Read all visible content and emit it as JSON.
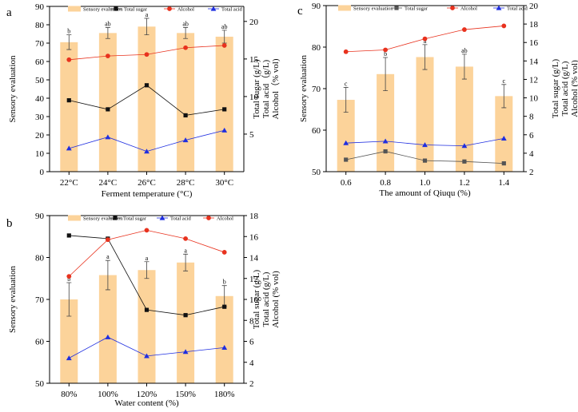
{
  "colors": {
    "bar": "#fcd39a",
    "total_sugar": "#111111",
    "alcohol": "#e8321e",
    "total_acid": "#1f2ee0",
    "sugar_c": "#555555"
  },
  "chart_data": [
    {
      "id": "a",
      "panel_label": "a",
      "type": "bar",
      "categories": [
        "22°C",
        "24°C",
        "26°C",
        "28°C",
        "30°C"
      ],
      "xlabel": "Ferment temperature (°C)",
      "ylabel": "Sensory evaluation",
      "ylim": [
        0,
        90
      ],
      "yticks": [
        0,
        10,
        20,
        30,
        40,
        50,
        60,
        70,
        80,
        90
      ],
      "y2label_lines": [
        "Total sugar (g/L)",
        "Total acid（g/L)",
        "Alcohol（% vol)"
      ],
      "y2lim": [
        0,
        22
      ],
      "y2ticks": [
        5,
        10,
        15,
        20
      ],
      "legend": [
        "Sensory evaluation",
        "Total sugar",
        "Alcohol",
        "Total acid"
      ],
      "bars": {
        "values": [
          70.5,
          75.5,
          79,
          75.5,
          73.5
        ],
        "errors": [
          4,
          3,
          4.5,
          3,
          3.5
        ],
        "labels": [
          "b",
          "ab",
          "a",
          "ab",
          "ab"
        ]
      },
      "series": [
        {
          "key": "total_sugar",
          "marker": "square",
          "values": [
            9.5,
            8.3,
            11.5,
            7.5,
            8.3
          ]
        },
        {
          "key": "alcohol",
          "marker": "circle",
          "values": [
            14.9,
            15.4,
            15.6,
            16.5,
            16.8
          ]
        },
        {
          "key": "total_acid",
          "marker": "triangle",
          "values": [
            3.1,
            4.6,
            2.7,
            4.2,
            5.5
          ]
        }
      ]
    },
    {
      "id": "b",
      "panel_label": "b",
      "type": "bar",
      "categories": [
        "80%",
        "100%",
        "120%",
        "150%",
        "180%"
      ],
      "xlabel": "Water content (%)",
      "ylabel": "Sensory evaluation",
      "ylim": [
        50,
        90
      ],
      "yticks": [
        50,
        60,
        70,
        80,
        90
      ],
      "y2label_lines": [
        "Total sugar (g/L)",
        "Total acid (g/L)",
        "Alcohol (% vol)"
      ],
      "y2lim": [
        2,
        18
      ],
      "y2ticks": [
        2,
        4,
        6,
        8,
        10,
        12,
        14,
        16,
        18
      ],
      "legend": [
        "Sensory evaluation",
        "Total sugar",
        "Total acid",
        "Alcohol"
      ],
      "bars": {
        "values": [
          70,
          75.8,
          77,
          78.8,
          70.8
        ],
        "errors": [
          4,
          3.5,
          2,
          2,
          2.5
        ],
        "labels": [
          "b",
          "a",
          "a",
          "a",
          "b"
        ]
      },
      "series": [
        {
          "key": "total_sugar",
          "marker": "square",
          "values": [
            16.1,
            15.8,
            9.0,
            8.5,
            9.3
          ]
        },
        {
          "key": "total_acid",
          "marker": "triangle",
          "values": [
            4.4,
            6.4,
            4.6,
            5.0,
            5.4
          ]
        },
        {
          "key": "alcohol",
          "marker": "circle",
          "values": [
            12.2,
            15.7,
            16.6,
            15.8,
            14.5
          ]
        }
      ]
    },
    {
      "id": "c",
      "panel_label": "c",
      "type": "bar",
      "categories": [
        "0.6",
        "0.8",
        "1.0",
        "1.2",
        "1.4"
      ],
      "xlabel": "The amount of Qiuqu (%)",
      "ylabel": "Sensory evaluation",
      "ylim": [
        50,
        90
      ],
      "yticks": [
        50,
        60,
        70,
        80,
        90
      ],
      "y2label_lines": [
        "Total sugar (g/L)",
        "Total acid (g/L)",
        "Alcohol (% vol)"
      ],
      "y2lim": [
        2,
        20
      ],
      "y2ticks": [
        2,
        4,
        6,
        8,
        10,
        12,
        14,
        16,
        18,
        20
      ],
      "legend": [
        "Sensory evaluation",
        "Total sugar",
        "Alcohol",
        "Total acid"
      ],
      "bars": {
        "values": [
          67.3,
          73.5,
          77.6,
          75.3,
          68.2
        ],
        "errors": [
          3,
          4,
          3,
          3,
          2.8
        ],
        "labels": [
          "c",
          "b",
          "a",
          "ab",
          "c"
        ]
      },
      "series": [
        {
          "key": "sugar_c",
          "marker": "square",
          "values": [
            3.3,
            4.2,
            3.2,
            3.1,
            2.9
          ]
        },
        {
          "key": "alcohol",
          "marker": "circle",
          "values": [
            15.0,
            15.2,
            16.4,
            17.4,
            17.8
          ]
        },
        {
          "key": "total_acid",
          "marker": "triangle",
          "values": [
            5.1,
            5.3,
            4.9,
            4.8,
            5.6
          ]
        }
      ]
    }
  ]
}
